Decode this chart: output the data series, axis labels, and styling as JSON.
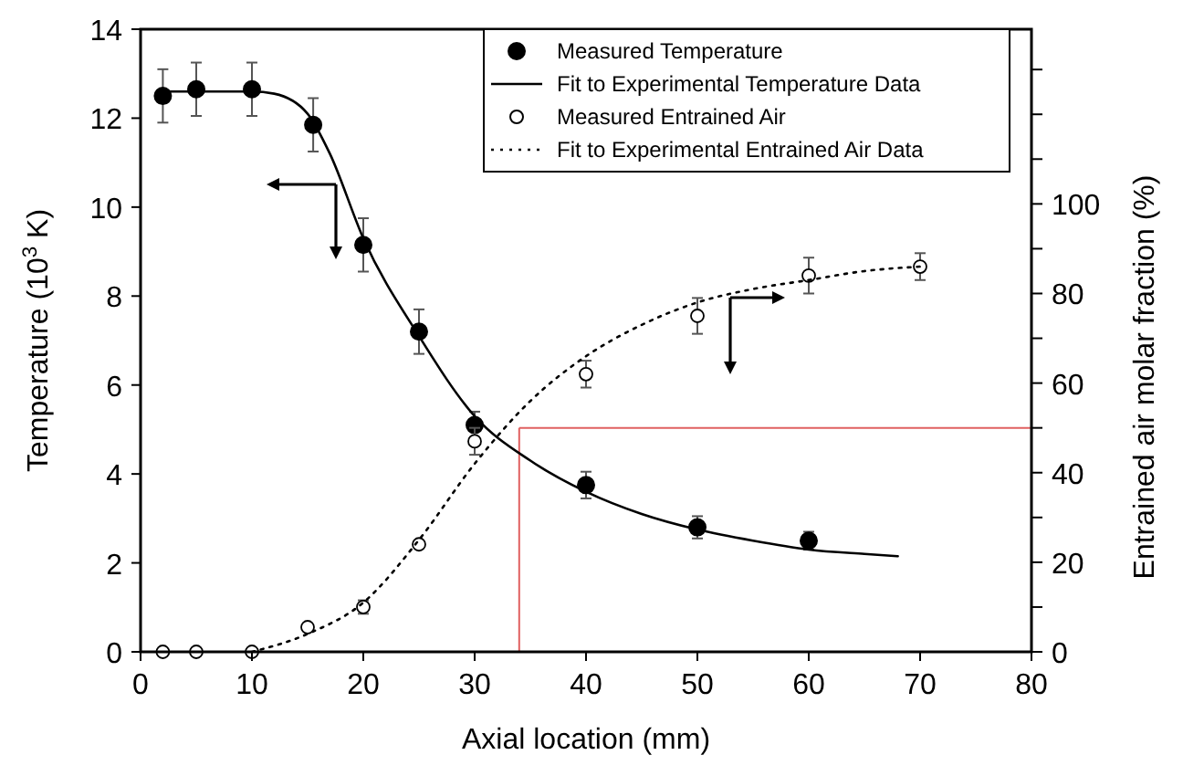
{
  "chart_data": {
    "type": "scatter",
    "xlabel": "Axial location (mm)",
    "ylabel": "Temperature (10$^{3}$ K)",
    "y2label": "Entrained air molar fraction (%)",
    "xlim": [
      0,
      80
    ],
    "xticks": [
      0,
      10,
      20,
      30,
      40,
      50,
      60,
      70,
      80
    ],
    "ylim": [
      0,
      14
    ],
    "yticks": [
      0,
      2,
      4,
      6,
      8,
      10,
      12,
      14
    ],
    "y2lim": [
      0,
      139
    ],
    "y2ticks": [
      0,
      {
        "value": 10,
        "label": null
      },
      20,
      {
        "value": 30,
        "label": null
      },
      40,
      {
        "value": 50,
        "label": null
      },
      60,
      {
        "value": 70,
        "label": null
      },
      80,
      {
        "value": 90,
        "label": null
      },
      100,
      {
        "value": 110,
        "label": null
      },
      {
        "value": 120,
        "label": null
      },
      {
        "value": 130,
        "label": null
      }
    ],
    "legend": "top right",
    "grid": false,
    "marker": "circle",
    "series": [
      {
        "name": "Measured Temperature",
        "color": "#000000",
        "x": [
          2,
          5,
          10,
          15.5,
          20,
          25,
          30,
          40,
          50,
          60
        ],
        "values": [
          12.5,
          12.65,
          12.65,
          11.85,
          9.15,
          7.2,
          5.1,
          3.75,
          2.8,
          2.5
        ],
        "errors": [
          0.6,
          0.6,
          0.6,
          0.6,
          0.6,
          0.5,
          0.3,
          0.3,
          0.25,
          0.2
        ]
      },
      {
        "name": "Fit to Experimental Temperature Data",
        "type": "line",
        "color": "#000000",
        "line_style": "solid",
        "marker": "none",
        "x": [
          2,
          10,
          12,
          15,
          17,
          20,
          25,
          30,
          35,
          40,
          45,
          50,
          55,
          60,
          65,
          68
        ],
        "values": [
          12.6,
          12.6,
          12.55,
          12.1,
          11.2,
          9.3,
          7.1,
          5.3,
          4.3,
          3.6,
          3.1,
          2.75,
          2.5,
          2.3,
          2.2,
          2.15
        ]
      },
      {
        "name": "Measured Entrained Air",
        "axis": "y2",
        "color": "#000000",
        "x": [
          2,
          5,
          10,
          15,
          20,
          25,
          30,
          40,
          50,
          60,
          70
        ],
        "values": [
          0,
          0,
          0,
          5.5,
          10,
          24,
          47,
          62,
          75,
          84,
          86
        ],
        "errors": [
          null,
          null,
          null,
          null,
          1.5,
          null,
          3,
          3,
          4,
          4,
          3
        ]
      },
      {
        "name": "Fit to Experimental Entrained Air Data",
        "type": "line",
        "axis": "y2",
        "color": "#000000",
        "line_style": "dotted",
        "marker": "none",
        "x": [
          10,
          15,
          20,
          25,
          30,
          35,
          40,
          45,
          50,
          55,
          60,
          65,
          70
        ],
        "values": [
          0,
          4,
          11,
          25,
          42,
          56,
          66,
          73,
          78,
          81,
          83,
          85,
          86
        ]
      }
    ],
    "ref_lines": [
      {
        "axis": "x",
        "value": 34,
        "color": "#e06060"
      },
      {
        "axis": "y2",
        "value": 50,
        "color": "#e06060"
      }
    ]
  }
}
